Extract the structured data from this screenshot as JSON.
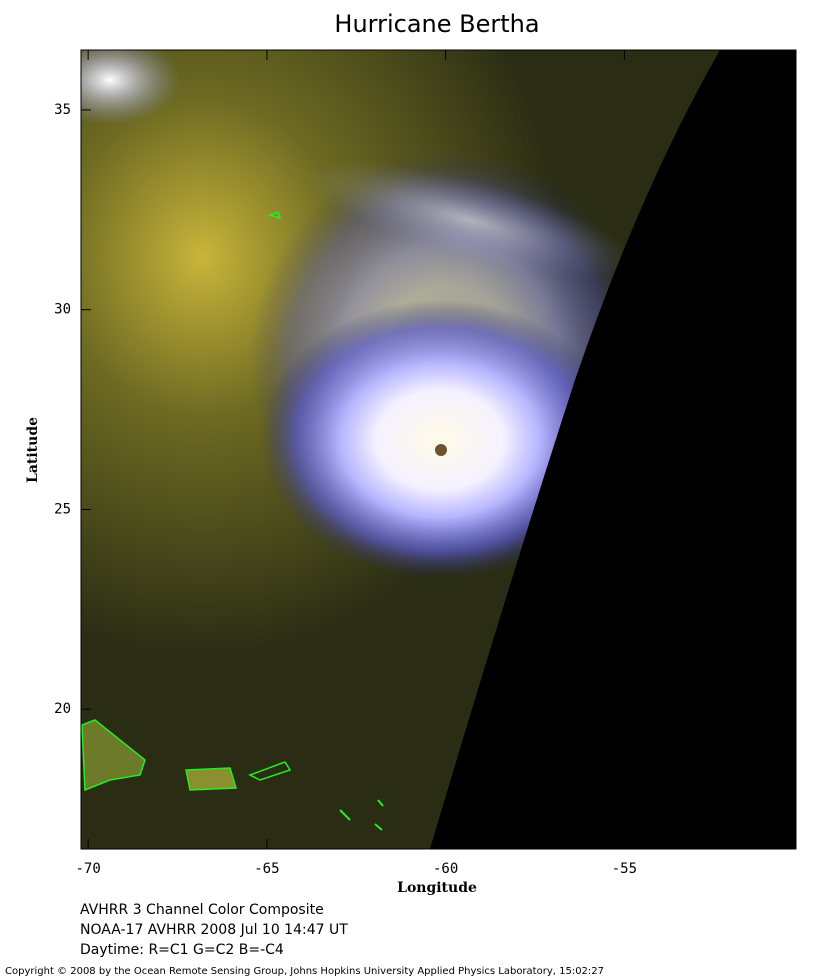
{
  "chart_data": {
    "type": "map",
    "title": "Hurricane Bertha",
    "xlabel": "Longitude",
    "ylabel": "Latitude",
    "xlim": [
      -70.2,
      -50.2
    ],
    "ylim": [
      16.5,
      36.5
    ],
    "xticks": [
      -70,
      -65,
      -60,
      -55
    ],
    "yticks": [
      20,
      25,
      30,
      35
    ],
    "notes": [
      "AVHRR 3 Channel Color Composite",
      "NOAA-17 AVHRR 2008 Jul 10 14:47 UT",
      "Daytime: R=C1 G=C2 B=-C4"
    ],
    "copyright": "Copyright © 2008 by the Ocean Remote Sensing Group, Johns Hopkins University Applied Physics Laboratory, 15:02:27"
  }
}
